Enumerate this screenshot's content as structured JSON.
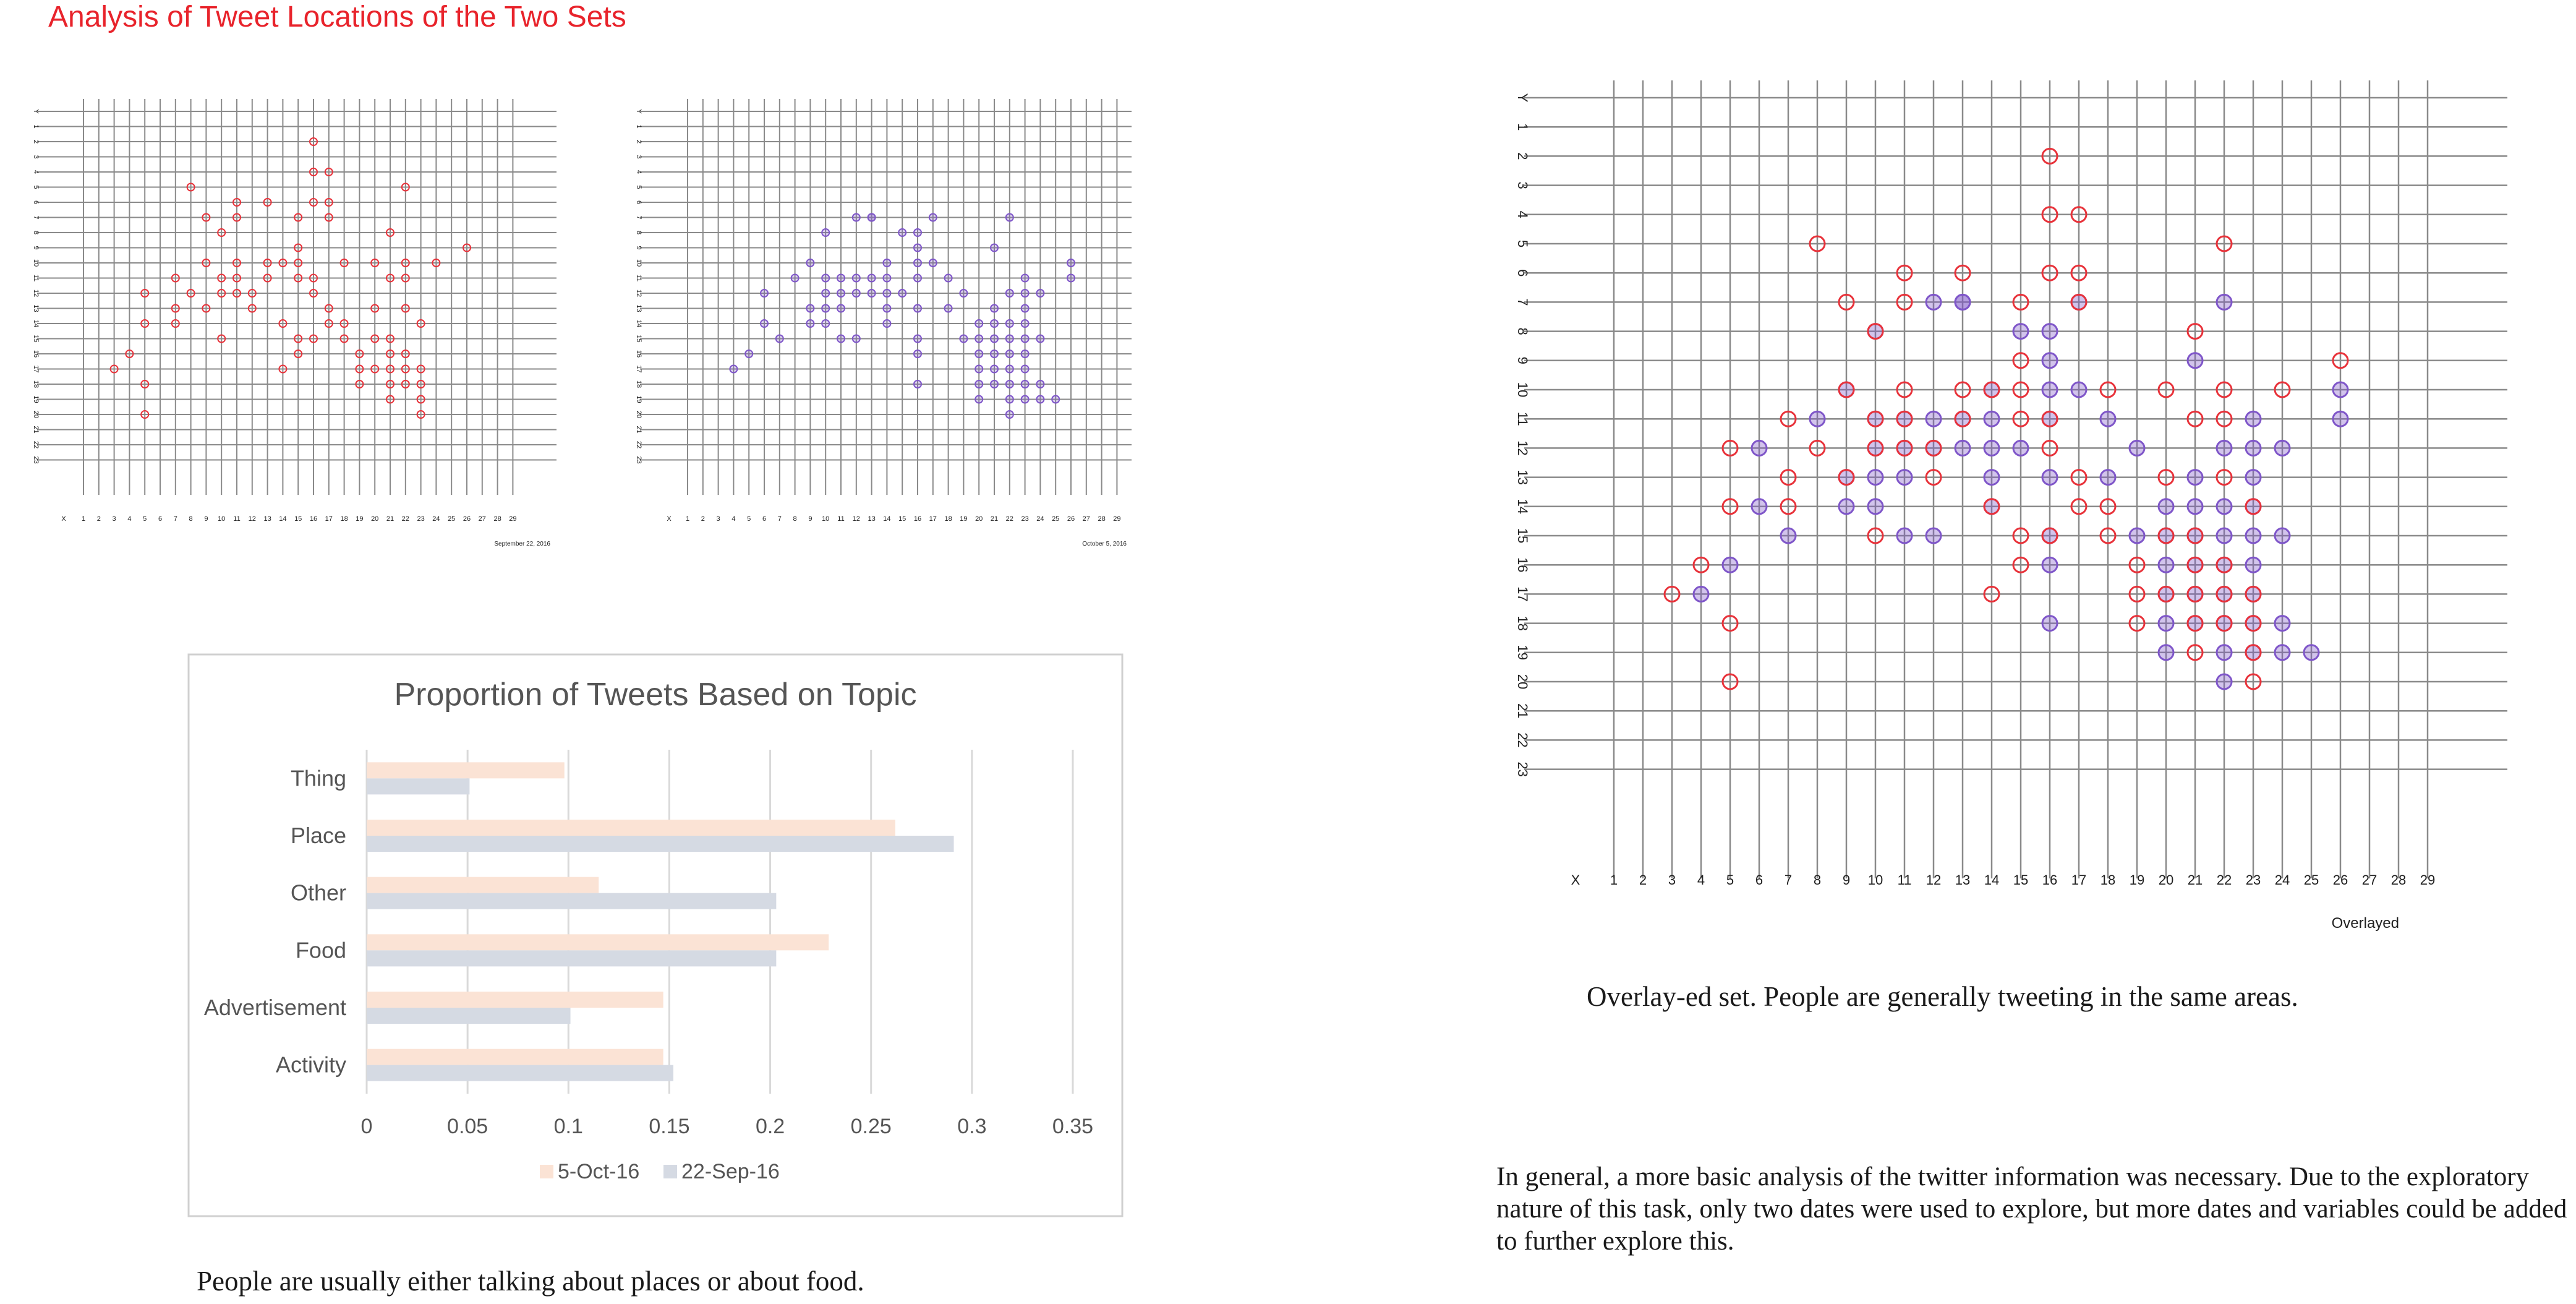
{
  "page": {
    "title": "Analysis of Tweet Locations of the Two Sets",
    "caption_bar": "People are usually either talking about places or about food.",
    "caption_overlay": "Overlay-ed set. People are generally tweeting in the same areas.",
    "paragraph": "In general, a more basic analysis of the twitter information was necessary. Due to the exploratory nature of this task, only two dates were used to explore, but more dates and variables could be added to further explore this."
  },
  "colors": {
    "set_sep22": "#e8323a",
    "set_oct5": "#7f56c9",
    "bar_oct5": "#fbe3d5",
    "bar_sep22": "#d5dae3",
    "grid": "#8a8a8a"
  },
  "chart_data": [
    {
      "type": "scatter",
      "id": "sep22",
      "label": "September 22, 2016",
      "x_axis_label": "X",
      "y_axis_label": "Y",
      "x_ticks": [
        1,
        2,
        3,
        4,
        5,
        6,
        7,
        8,
        9,
        10,
        11,
        12,
        13,
        14,
        15,
        16,
        17,
        18,
        19,
        20,
        21,
        22,
        23,
        24,
        25,
        26,
        27,
        28,
        29
      ],
      "y_ticks": [
        1,
        2,
        3,
        4,
        5,
        6,
        7,
        8,
        9,
        10,
        11,
        12,
        13,
        14,
        15,
        16,
        17,
        18,
        19,
        20,
        21,
        22,
        23
      ],
      "points": [
        [
          16,
          2
        ],
        [
          16,
          4
        ],
        [
          17,
          4
        ],
        [
          8,
          5
        ],
        [
          22,
          5
        ],
        [
          11,
          6
        ],
        [
          13,
          6
        ],
        [
          16,
          6
        ],
        [
          17,
          6
        ],
        [
          9,
          7
        ],
        [
          11,
          7
        ],
        [
          15,
          7
        ],
        [
          17,
          7
        ],
        [
          21,
          8
        ],
        [
          10,
          8
        ],
        [
          15,
          9
        ],
        [
          9,
          10
        ],
        [
          11,
          10
        ],
        [
          13,
          10
        ],
        [
          14,
          10
        ],
        [
          15,
          10
        ],
        [
          18,
          10
        ],
        [
          20,
          10
        ],
        [
          22,
          10
        ],
        [
          24,
          10
        ],
        [
          26,
          9
        ],
        [
          7,
          11
        ],
        [
          10,
          11
        ],
        [
          11,
          11
        ],
        [
          13,
          11
        ],
        [
          15,
          11
        ],
        [
          16,
          11
        ],
        [
          21,
          11
        ],
        [
          22,
          11
        ],
        [
          5,
          12
        ],
        [
          8,
          12
        ],
        [
          10,
          12
        ],
        [
          11,
          12
        ],
        [
          12,
          12
        ],
        [
          16,
          12
        ],
        [
          17,
          13
        ],
        [
          7,
          13
        ],
        [
          9,
          13
        ],
        [
          12,
          13
        ],
        [
          20,
          13
        ],
        [
          22,
          13
        ],
        [
          5,
          14
        ],
        [
          7,
          14
        ],
        [
          17,
          14
        ],
        [
          18,
          14
        ],
        [
          23,
          14
        ],
        [
          10,
          15
        ],
        [
          16,
          15
        ],
        [
          18,
          15
        ],
        [
          20,
          15
        ],
        [
          21,
          15
        ],
        [
          4,
          16
        ],
        [
          15,
          16
        ],
        [
          19,
          16
        ],
        [
          21,
          16
        ],
        [
          22,
          16
        ],
        [
          3,
          17
        ],
        [
          14,
          17
        ],
        [
          19,
          17
        ],
        [
          20,
          17
        ],
        [
          21,
          17
        ],
        [
          22,
          17
        ],
        [
          23,
          17
        ],
        [
          5,
          18
        ],
        [
          19,
          18
        ],
        [
          21,
          18
        ],
        [
          22,
          18
        ],
        [
          23,
          18
        ],
        [
          21,
          19
        ],
        [
          23,
          19
        ],
        [
          5,
          20
        ],
        [
          23,
          20
        ],
        [
          14,
          14
        ],
        [
          15,
          15
        ]
      ]
    },
    {
      "type": "scatter",
      "id": "oct5",
      "label": "October 5, 2016",
      "x_axis_label": "X",
      "y_axis_label": "Y",
      "x_ticks": [
        1,
        2,
        3,
        4,
        5,
        6,
        7,
        8,
        9,
        10,
        11,
        12,
        13,
        14,
        15,
        16,
        17,
        18,
        19,
        20,
        21,
        22,
        23,
        24,
        25,
        26,
        27,
        28,
        29
      ],
      "y_ticks": [
        1,
        2,
        3,
        4,
        5,
        6,
        7,
        8,
        9,
        10,
        11,
        12,
        13,
        14,
        15,
        16,
        17,
        18,
        19,
        20,
        21,
        22,
        23
      ],
      "points": [
        [
          12,
          7
        ],
        [
          13,
          7
        ],
        [
          17,
          7
        ],
        [
          22,
          7
        ],
        [
          10,
          8
        ],
        [
          16,
          8
        ],
        [
          15,
          8
        ],
        [
          16,
          9
        ],
        [
          21,
          9
        ],
        [
          9,
          10
        ],
        [
          14,
          10
        ],
        [
          16,
          10
        ],
        [
          17,
          10
        ],
        [
          26,
          10
        ],
        [
          8,
          11
        ],
        [
          10,
          11
        ],
        [
          11,
          11
        ],
        [
          12,
          11
        ],
        [
          13,
          11
        ],
        [
          14,
          11
        ],
        [
          16,
          11
        ],
        [
          18,
          11
        ],
        [
          23,
          11
        ],
        [
          26,
          11
        ],
        [
          6,
          12
        ],
        [
          10,
          12
        ],
        [
          11,
          12
        ],
        [
          12,
          12
        ],
        [
          13,
          12
        ],
        [
          14,
          12
        ],
        [
          15,
          12
        ],
        [
          19,
          12
        ],
        [
          22,
          12
        ],
        [
          23,
          12
        ],
        [
          24,
          12
        ],
        [
          9,
          13
        ],
        [
          10,
          13
        ],
        [
          11,
          13
        ],
        [
          14,
          13
        ],
        [
          16,
          13
        ],
        [
          18,
          13
        ],
        [
          21,
          13
        ],
        [
          23,
          13
        ],
        [
          6,
          14
        ],
        [
          9,
          14
        ],
        [
          10,
          14
        ],
        [
          14,
          14
        ],
        [
          20,
          14
        ],
        [
          21,
          14
        ],
        [
          22,
          14
        ],
        [
          23,
          14
        ],
        [
          7,
          15
        ],
        [
          11,
          15
        ],
        [
          12,
          15
        ],
        [
          16,
          15
        ],
        [
          19,
          15
        ],
        [
          20,
          15
        ],
        [
          21,
          15
        ],
        [
          22,
          15
        ],
        [
          23,
          15
        ],
        [
          24,
          15
        ],
        [
          16,
          16
        ],
        [
          20,
          16
        ],
        [
          21,
          16
        ],
        [
          22,
          16
        ],
        [
          23,
          16
        ],
        [
          4,
          17
        ],
        [
          20,
          17
        ],
        [
          21,
          17
        ],
        [
          22,
          17
        ],
        [
          23,
          17
        ],
        [
          16,
          18
        ],
        [
          20,
          18
        ],
        [
          21,
          18
        ],
        [
          22,
          18
        ],
        [
          23,
          18
        ],
        [
          24,
          18
        ],
        [
          20,
          19
        ],
        [
          22,
          19
        ],
        [
          23,
          19
        ],
        [
          24,
          19
        ],
        [
          25,
          19
        ],
        [
          22,
          20
        ],
        [
          13,
          7
        ],
        [
          5,
          16
        ]
      ]
    },
    {
      "type": "scatter",
      "id": "overlay",
      "label": "Overlayed",
      "x_axis_label": "X",
      "y_axis_label": "Y",
      "x_ticks": [
        1,
        2,
        3,
        4,
        5,
        6,
        7,
        8,
        9,
        10,
        11,
        12,
        13,
        14,
        15,
        16,
        17,
        18,
        19,
        20,
        21,
        22,
        23,
        24,
        25,
        26,
        27,
        28,
        29
      ],
      "y_ticks": [
        1,
        2,
        3,
        4,
        5,
        6,
        7,
        8,
        9,
        10,
        11,
        12,
        13,
        14,
        15,
        16,
        17,
        18,
        19,
        20,
        21,
        22,
        23
      ]
    },
    {
      "type": "bar",
      "orientation": "horizontal",
      "title": "Proportion of Tweets Based on Topic",
      "categories": [
        "Activity",
        "Advertisement",
        "Food",
        "Other",
        "Place",
        "Thing"
      ],
      "series": [
        {
          "name": "5-Oct-16",
          "values": [
            0.147,
            0.147,
            0.229,
            0.115,
            0.262,
            0.098
          ]
        },
        {
          "name": "22-Sep-16",
          "values": [
            0.152,
            0.101,
            0.203,
            0.203,
            0.291,
            0.051
          ]
        }
      ],
      "x_ticks": [
        "0",
        "0.05",
        "0.1",
        "0.15",
        "0.2",
        "0.25",
        "0.3",
        "0.35"
      ],
      "xlim": [
        0,
        0.35
      ],
      "legend": "bottom"
    }
  ]
}
